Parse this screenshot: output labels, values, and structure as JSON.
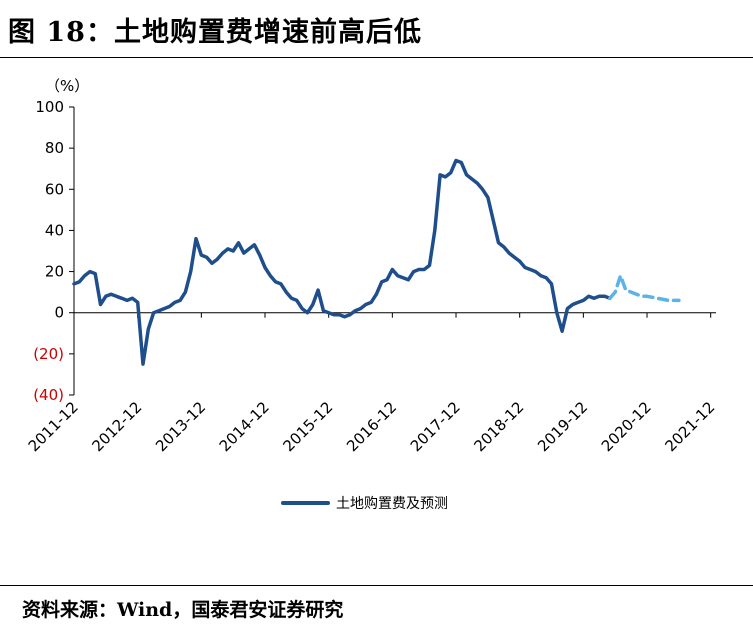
{
  "figure": {
    "title": "图 18：土地购置费增速前高后低",
    "source": "资料来源：Wind，国泰君安证券研究"
  },
  "colors": {
    "actual": "#1f4e8c",
    "forecast": "#5bb3e6",
    "negative_tick": "#cc0000",
    "axis": "#000000"
  },
  "chart_data": {
    "type": "line",
    "unit_label": "（%）",
    "ylim": [
      -40,
      100
    ],
    "y_ticks": [
      {
        "value": 100,
        "label": "100"
      },
      {
        "value": 80,
        "label": "80"
      },
      {
        "value": 60,
        "label": "60"
      },
      {
        "value": 40,
        "label": "40"
      },
      {
        "value": 20,
        "label": "20"
      },
      {
        "value": 0,
        "label": "0"
      },
      {
        "value": -20,
        "label": "(20)"
      },
      {
        "value": -40,
        "label": "(40)"
      }
    ],
    "x_range": [
      "2011-12",
      "2022-01"
    ],
    "x_ticks": [
      "2011-12",
      "2012-12",
      "2013-12",
      "2014-12",
      "2015-12",
      "2016-12",
      "2017-12",
      "2018-12",
      "2019-12",
      "2020-12",
      "2021-12"
    ],
    "grid": false,
    "legend_position": "bottom-center",
    "legend_label": "土地购置费及预测",
    "series": [
      {
        "style": "solid",
        "points": [
          [
            "2011-12",
            14
          ],
          [
            "2012-01",
            15
          ],
          [
            "2012-02",
            18
          ],
          [
            "2012-03",
            20
          ],
          [
            "2012-04",
            19
          ],
          [
            "2012-05",
            4
          ],
          [
            "2012-06",
            8
          ],
          [
            "2012-07",
            9
          ],
          [
            "2012-08",
            8
          ],
          [
            "2012-09",
            7
          ],
          [
            "2012-10",
            6
          ],
          [
            "2012-11",
            7
          ],
          [
            "2012-12",
            5
          ],
          [
            "2013-01",
            -25
          ],
          [
            "2013-02",
            -8
          ],
          [
            "2013-03",
            0
          ],
          [
            "2013-04",
            1
          ],
          [
            "2013-05",
            2
          ],
          [
            "2013-06",
            3
          ],
          [
            "2013-07",
            5
          ],
          [
            "2013-08",
            6
          ],
          [
            "2013-09",
            10
          ],
          [
            "2013-10",
            20
          ],
          [
            "2013-11",
            36
          ],
          [
            "2013-12",
            28
          ],
          [
            "2014-01",
            27
          ],
          [
            "2014-02",
            24
          ],
          [
            "2014-03",
            26
          ],
          [
            "2014-04",
            29
          ],
          [
            "2014-05",
            31
          ],
          [
            "2014-06",
            30
          ],
          [
            "2014-07",
            34
          ],
          [
            "2014-08",
            29
          ],
          [
            "2014-09",
            31
          ],
          [
            "2014-10",
            33
          ],
          [
            "2014-11",
            28
          ],
          [
            "2014-12",
            22
          ],
          [
            "2015-01",
            18
          ],
          [
            "2015-02",
            15
          ],
          [
            "2015-03",
            14
          ],
          [
            "2015-04",
            10
          ],
          [
            "2015-05",
            7
          ],
          [
            "2015-06",
            6
          ],
          [
            "2015-07",
            2
          ],
          [
            "2015-08",
            0
          ],
          [
            "2015-09",
            4
          ],
          [
            "2015-10",
            11
          ],
          [
            "2015-11",
            1
          ],
          [
            "2015-12",
            0
          ],
          [
            "2016-01",
            -1
          ],
          [
            "2016-02",
            -1
          ],
          [
            "2016-03",
            -2
          ],
          [
            "2016-04",
            -1
          ],
          [
            "2016-05",
            1
          ],
          [
            "2016-06",
            2
          ],
          [
            "2016-07",
            4
          ],
          [
            "2016-08",
            5
          ],
          [
            "2016-09",
            9
          ],
          [
            "2016-10",
            15
          ],
          [
            "2016-11",
            16
          ],
          [
            "2016-12",
            21
          ],
          [
            "2017-01",
            18
          ],
          [
            "2017-02",
            17
          ],
          [
            "2017-03",
            16
          ],
          [
            "2017-04",
            20
          ],
          [
            "2017-05",
            21
          ],
          [
            "2017-06",
            21
          ],
          [
            "2017-07",
            23
          ],
          [
            "2017-08",
            40
          ],
          [
            "2017-09",
            67
          ],
          [
            "2017-10",
            66
          ],
          [
            "2017-11",
            68
          ],
          [
            "2017-12",
            74
          ],
          [
            "2018-01",
            73
          ],
          [
            "2018-02",
            67
          ],
          [
            "2018-03",
            65
          ],
          [
            "2018-04",
            63
          ],
          [
            "2018-05",
            60
          ],
          [
            "2018-06",
            56
          ],
          [
            "2018-07",
            45
          ],
          [
            "2018-08",
            34
          ],
          [
            "2018-09",
            32
          ],
          [
            "2018-10",
            29
          ],
          [
            "2018-11",
            27
          ],
          [
            "2018-12",
            25
          ],
          [
            "2019-01",
            22
          ],
          [
            "2019-02",
            21
          ],
          [
            "2019-03",
            20
          ],
          [
            "2019-04",
            18
          ],
          [
            "2019-05",
            17
          ],
          [
            "2019-06",
            14
          ],
          [
            "2019-07",
            0
          ],
          [
            "2019-08",
            -9
          ],
          [
            "2019-09",
            2
          ],
          [
            "2019-10",
            4
          ],
          [
            "2019-11",
            5
          ],
          [
            "2019-12",
            6
          ],
          [
            "2020-01",
            8
          ],
          [
            "2020-02",
            7
          ],
          [
            "2020-03",
            8
          ],
          [
            "2020-04",
            8
          ],
          [
            "2020-05",
            7
          ]
        ]
      },
      {
        "style": "dashed",
        "points": [
          [
            "2020-05",
            7
          ],
          [
            "2020-06",
            10
          ],
          [
            "2020-07",
            18
          ],
          [
            "2020-08",
            11
          ],
          [
            "2020-09",
            10
          ],
          [
            "2020-10",
            9
          ],
          [
            "2020-11",
            8
          ],
          [
            "2020-12",
            8
          ],
          [
            "2021-02",
            7
          ],
          [
            "2021-04",
            6
          ],
          [
            "2021-06",
            6
          ]
        ]
      }
    ]
  }
}
